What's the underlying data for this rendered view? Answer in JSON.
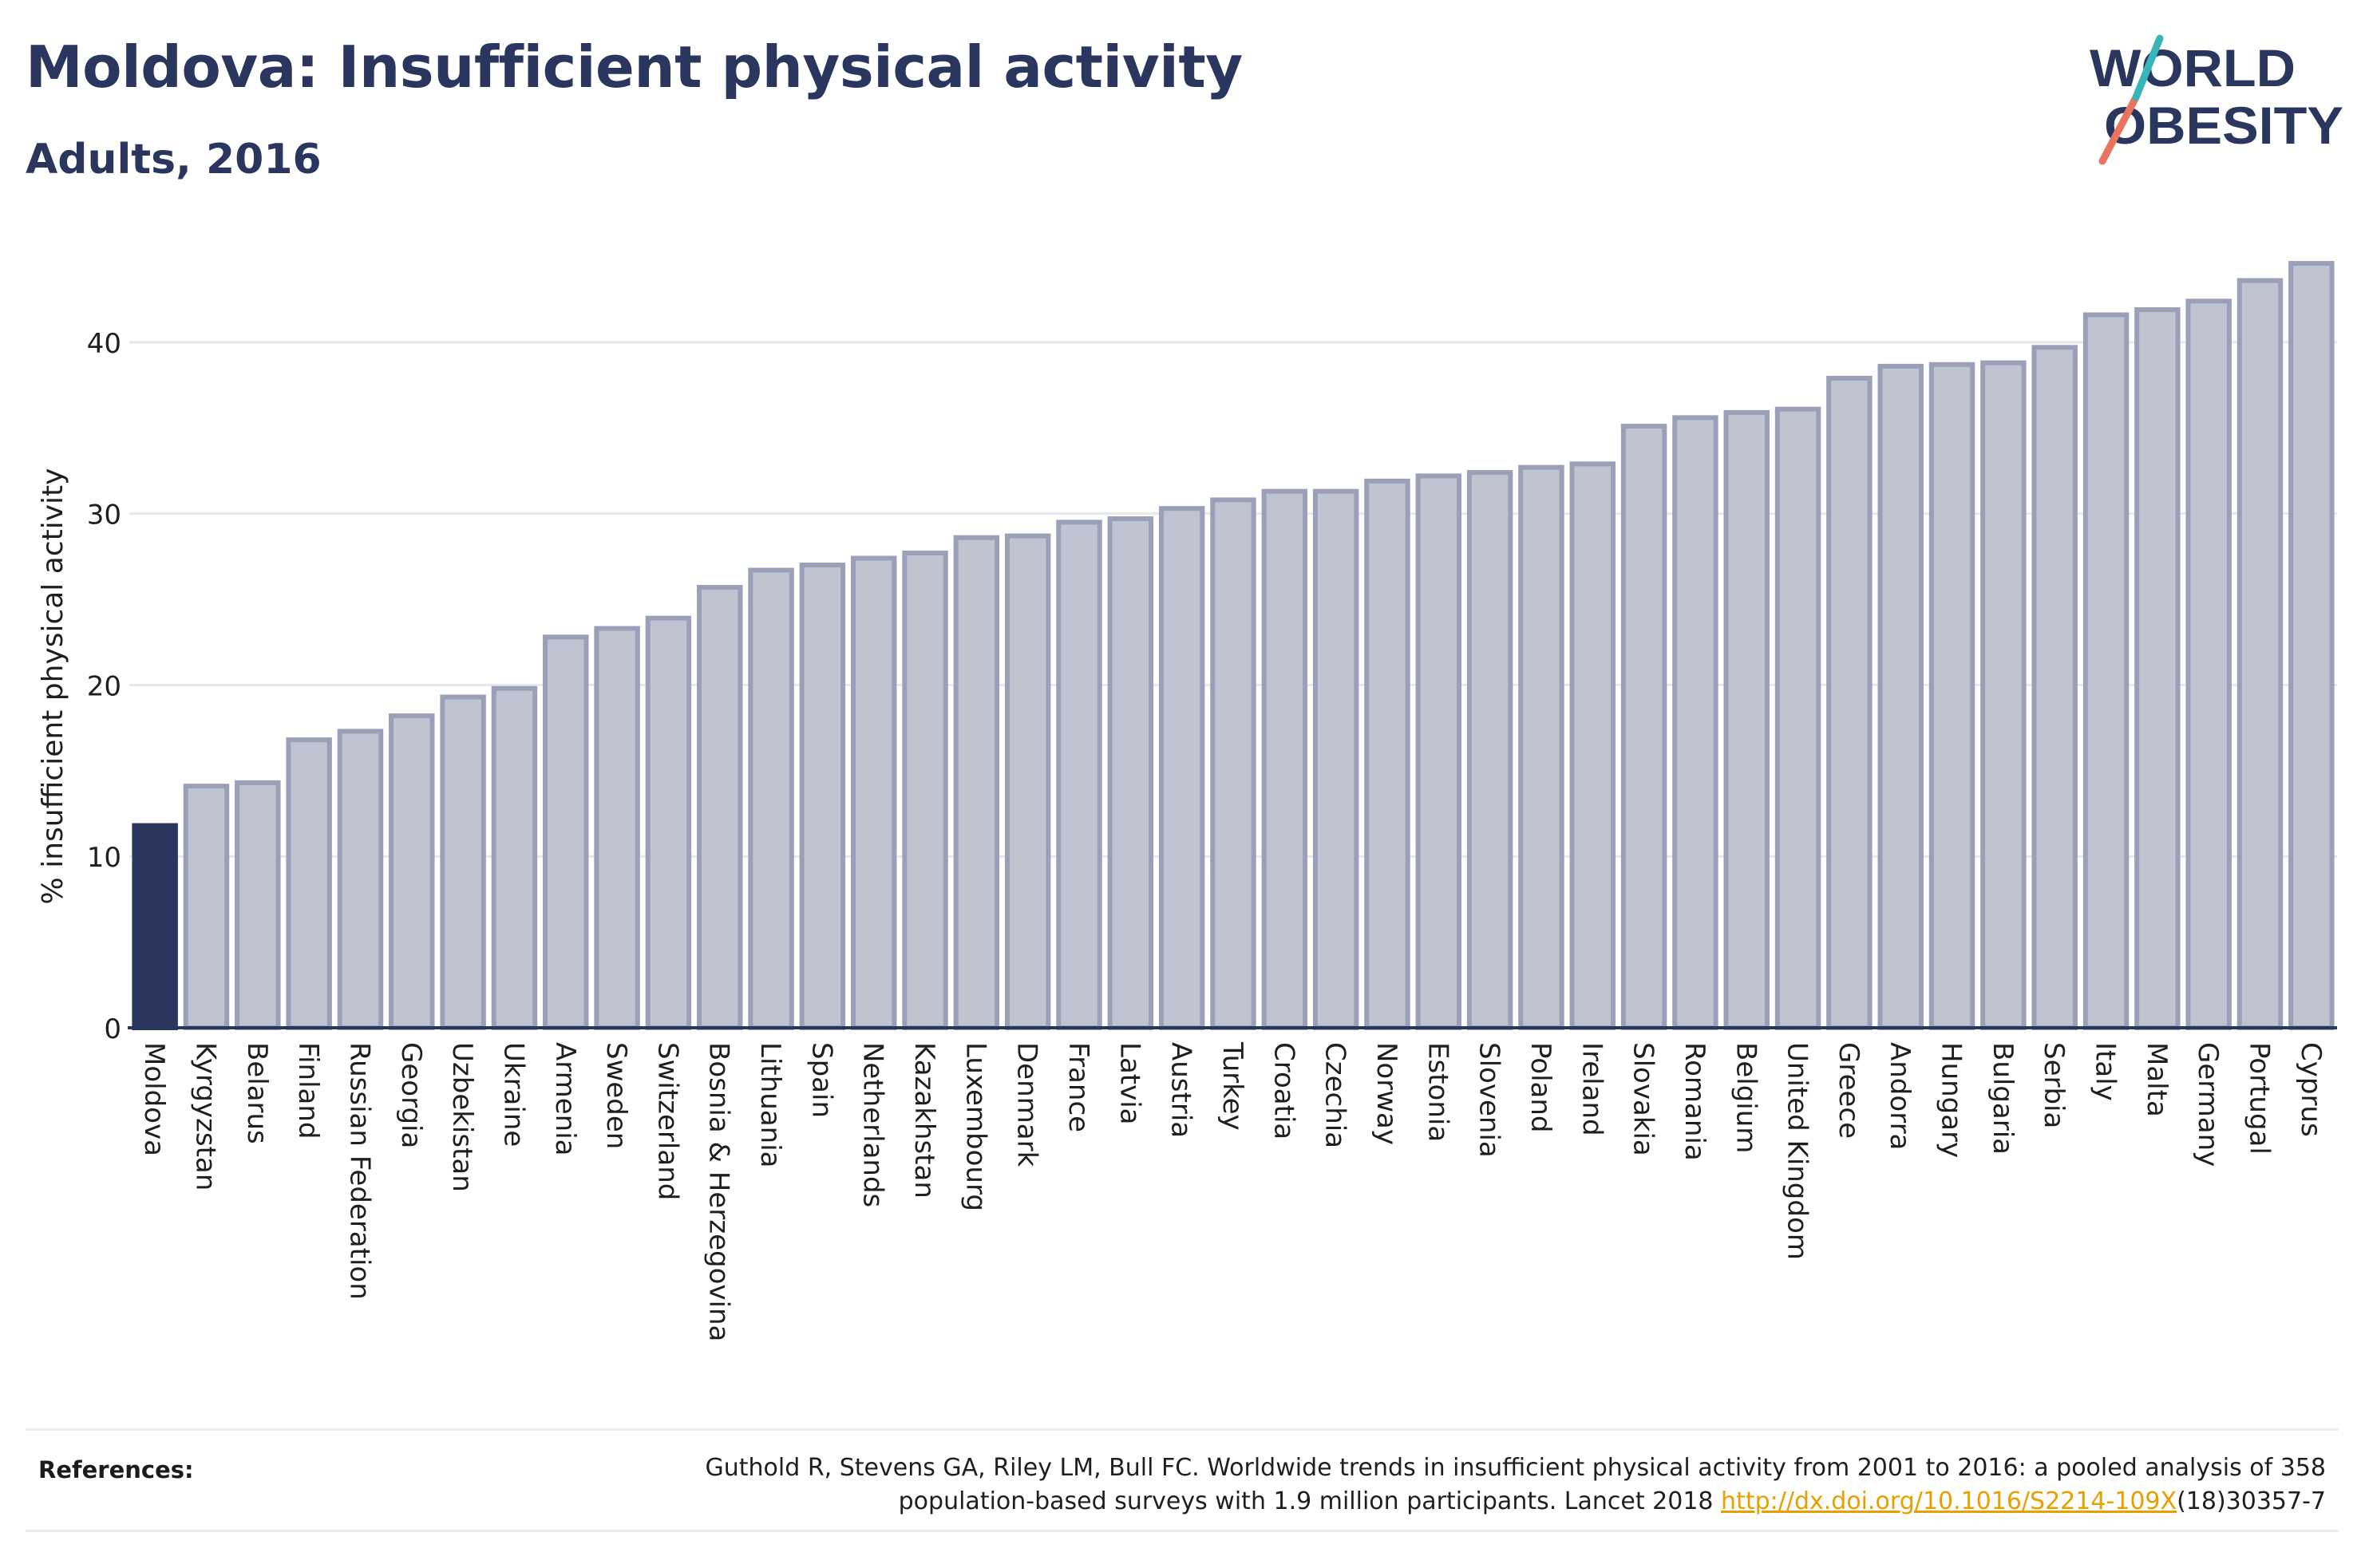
{
  "header": {
    "title": "Moldova: Insufficient physical activity",
    "subtitle": "Adults, 2016"
  },
  "logo": {
    "line1": "WORLD",
    "line2": "OBESITY",
    "colors": {
      "text": "#2b365f",
      "slash_red": "#e8735f",
      "slash_teal": "#37b5b9"
    }
  },
  "chart_data": {
    "type": "bar",
    "ylabel": "% insufficient physical activity",
    "ylim": [
      0,
      46
    ],
    "yticks": [
      0,
      10,
      20,
      30,
      40
    ],
    "grid": true,
    "highlight": "Moldova",
    "colors": {
      "highlight": "#2b365f",
      "bar_fill": "#c0c4d1",
      "bar_stroke": "#9aa0b8"
    },
    "categories": [
      "Moldova",
      "Kyrgyzstan",
      "Belarus",
      "Finland",
      "Russian Federation",
      "Georgia",
      "Uzbekistan",
      "Ukraine",
      "Armenia",
      "Sweden",
      "Switzerland",
      "Bosnia & Herzegovina",
      "Lithuania",
      "Spain",
      "Netherlands",
      "Kazakhstan",
      "Luxembourg",
      "Denmark",
      "France",
      "Latvia",
      "Austria",
      "Turkey",
      "Croatia",
      "Czechia",
      "Norway",
      "Estonia",
      "Slovenia",
      "Poland",
      "Ireland",
      "Slovakia",
      "Romania",
      "Belgium",
      "United Kingdom",
      "Greece",
      "Andorra",
      "Hungary",
      "Bulgaria",
      "Serbia",
      "Italy",
      "Malta",
      "Germany",
      "Portugal",
      "Cyprus"
    ],
    "values": [
      11.8,
      14.1,
      14.3,
      16.8,
      17.3,
      18.2,
      19.3,
      19.8,
      22.8,
      23.3,
      23.9,
      25.7,
      26.7,
      27.0,
      27.4,
      27.7,
      28.6,
      28.7,
      29.5,
      29.7,
      30.3,
      30.8,
      31.3,
      31.3,
      31.9,
      32.2,
      32.4,
      32.7,
      32.9,
      35.1,
      35.6,
      35.9,
      36.1,
      37.9,
      38.6,
      38.7,
      38.8,
      39.7,
      41.6,
      41.9,
      42.4,
      43.6,
      44.6
    ]
  },
  "references": {
    "label": "References:",
    "line1": "Guthold R, Stevens GA, Riley LM, Bull FC. Worldwide trends in insufficient physical activity from 2001 to 2016: a pooled analysis of 358",
    "line2_prefix": "population-based surveys with 1.9 million participants. Lancet 2018 ",
    "link": "http://dx.doi.org/10.1016/S2214-109X",
    "line2_suffix": "(18)30357-7"
  }
}
